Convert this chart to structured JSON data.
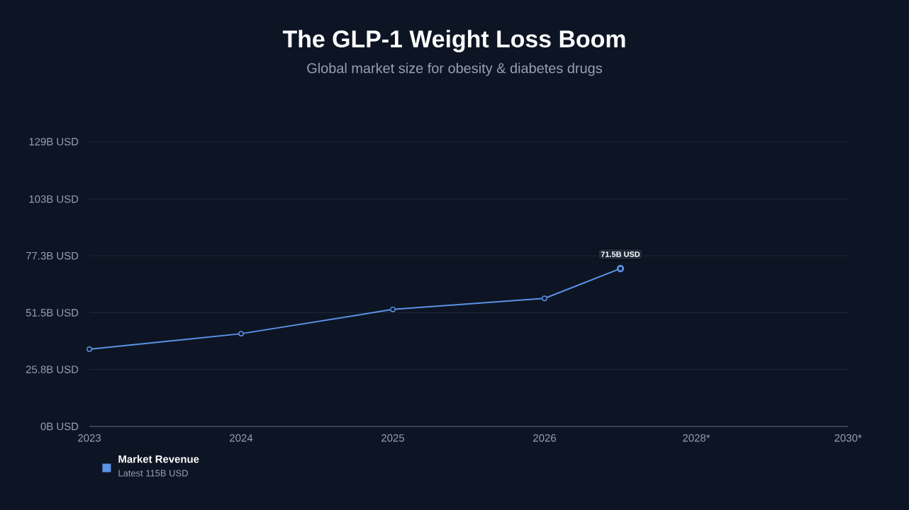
{
  "chart_data": {
    "type": "line",
    "title": "The GLP-1 Weight Loss Boom",
    "subtitle": "Global market size for obesity & diabetes drugs",
    "annotations": [
      "Latest 115B USD"
    ],
    "categories": [
      "2023",
      null,
      "2024",
      null,
      "2025",
      null,
      "2026",
      null,
      "2028*",
      null,
      "2030*"
    ],
    "ylim": [
      0,
      129
    ],
    "yticks": [
      {
        "value": 0,
        "label": "0B USD"
      },
      {
        "value": 25.8,
        "label": "25.8B USD"
      },
      {
        "value": 51.5,
        "label": "51.5B USD"
      },
      {
        "value": 77.3,
        "label": "77.3B USD"
      },
      {
        "value": 103,
        "label": "103B USD"
      },
      {
        "value": 129,
        "label": "129B USD"
      }
    ],
    "grid": "y",
    "legend": "bottom left",
    "marker": "circle",
    "line_style": "solid",
    "series": [
      {
        "name": "Market Revenue",
        "color": "#5b93e6",
        "values": [
          35,
          null,
          42,
          null,
          53,
          null,
          58,
          71.5,
          null,
          null,
          null
        ],
        "value_labels": [
          null,
          null,
          null,
          null,
          null,
          null,
          null,
          "71.5B USD",
          null,
          null,
          null
        ]
      }
    ]
  }
}
